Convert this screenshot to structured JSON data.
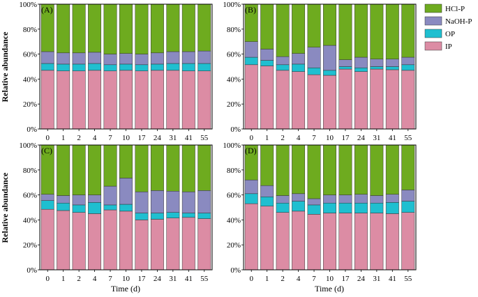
{
  "figure": {
    "ylabel": "Relative abundance",
    "xlabel": "Time (d)"
  },
  "colors": {
    "HCl-P": "#6eab1f",
    "NaOH-P": "#8a8ac0",
    "OP": "#1fbfd0",
    "IP": "#dc8ca4"
  },
  "legend": {
    "items": [
      {
        "name": "HCl-P",
        "color": "#6eab1f"
      },
      {
        "name": "NaOH-P",
        "color": "#8a8ac0"
      },
      {
        "name": "OP",
        "color": "#1fbfd0"
      },
      {
        "name": "IP",
        "color": "#dc8ca4"
      }
    ]
  },
  "chart_data": [
    {
      "type": "bar",
      "stacked": true,
      "panel_label": "(A)",
      "categories": [
        "0",
        "1",
        "2",
        "4",
        "7",
        "10",
        "17",
        "24",
        "31",
        "41",
        "55"
      ],
      "ytick_labels": [
        "0%",
        "20%",
        "40%",
        "60%",
        "80%",
        "100%"
      ],
      "ylim": [
        0,
        100
      ],
      "series": [
        {
          "name": "IP",
          "values": [
            47,
            46.5,
            46.5,
            47,
            46.5,
            47,
            46.5,
            47,
            47,
            46.5,
            46.5
          ]
        },
        {
          "name": "OP",
          "values": [
            5.5,
            5.5,
            5.5,
            5.5,
            5,
            5,
            5,
            5,
            5.5,
            6,
            6
          ]
        },
        {
          "name": "NaOH-P",
          "values": [
            9.5,
            9,
            9,
            9,
            8.5,
            8.5,
            8.5,
            9,
            9.5,
            9.5,
            10
          ]
        },
        {
          "name": "HCl-P",
          "values": [
            38,
            39,
            39,
            38.5,
            40,
            39.5,
            40,
            39,
            38,
            38,
            37.5
          ]
        }
      ]
    },
    {
      "type": "bar",
      "stacked": true,
      "panel_label": "(B)",
      "categories": [
        "0",
        "1",
        "2",
        "4",
        "7",
        "10",
        "17",
        "24",
        "31",
        "41",
        "55"
      ],
      "ytick_labels": [
        "0%",
        "20%",
        "40%",
        "60%",
        "80%",
        "100%"
      ],
      "ylim": [
        0,
        100
      ],
      "series": [
        {
          "name": "IP",
          "values": [
            51.5,
            50.5,
            47,
            46,
            43.5,
            43,
            48,
            46,
            48,
            47.5,
            47
          ]
        },
        {
          "name": "OP",
          "values": [
            6,
            4.5,
            4.5,
            6,
            5.5,
            4,
            2,
            3,
            2,
            2.5,
            4.5
          ]
        },
        {
          "name": "NaOH-P",
          "values": [
            12.5,
            9,
            6.5,
            8.5,
            16.5,
            20,
            5.5,
            8.5,
            6,
            6,
            6
          ]
        },
        {
          "name": "HCl-P",
          "values": [
            30,
            36,
            42,
            39.5,
            34.5,
            33,
            44.5,
            42.5,
            44,
            44,
            42.5
          ]
        }
      ]
    },
    {
      "type": "bar",
      "stacked": true,
      "panel_label": "(C)",
      "categories": [
        "0",
        "1",
        "2",
        "4",
        "7",
        "10",
        "17",
        "24",
        "31",
        "41",
        "55"
      ],
      "ytick_labels": [
        "0%",
        "20%",
        "40%",
        "60%",
        "80%",
        "100%"
      ],
      "ylim": [
        0,
        100
      ],
      "series": [
        {
          "name": "IP",
          "values": [
            48.5,
            47.5,
            46,
            45,
            48,
            47,
            40,
            40.5,
            41.5,
            42,
            41
          ]
        },
        {
          "name": "OP",
          "values": [
            7,
            6,
            6,
            9,
            4,
            5.5,
            5.5,
            5,
            4.5,
            3.5,
            4.5
          ]
        },
        {
          "name": "NaOH-P",
          "values": [
            5,
            6,
            8,
            6,
            15,
            21,
            17,
            18,
            17,
            17,
            18
          ]
        },
        {
          "name": "HCl-P",
          "values": [
            39.5,
            40.5,
            40,
            40,
            33,
            26.5,
            37.5,
            36.5,
            37,
            37.5,
            36.5
          ]
        }
      ]
    },
    {
      "type": "bar",
      "stacked": true,
      "panel_label": "(D)",
      "categories": [
        "0",
        "1",
        "2",
        "4",
        "7",
        "10",
        "17",
        "24",
        "31",
        "41",
        "55"
      ],
      "ytick_labels": [
        "0%",
        "20%",
        "40%",
        "60%",
        "80%",
        "100%"
      ],
      "ylim": [
        0,
        100
      ],
      "series": [
        {
          "name": "IP",
          "values": [
            53,
            51,
            46,
            47,
            44.5,
            45.5,
            45.5,
            45.5,
            45.5,
            45,
            46
          ]
        },
        {
          "name": "OP",
          "values": [
            8,
            7.5,
            7.5,
            8,
            7.5,
            8,
            8,
            8,
            8,
            9,
            9
          ]
        },
        {
          "name": "NaOH-P",
          "values": [
            11,
            9,
            6,
            6,
            5,
            6.5,
            6.5,
            7,
            6,
            6.5,
            9
          ]
        },
        {
          "name": "HCl-P",
          "values": [
            28,
            32.5,
            40.5,
            39,
            43,
            40,
            40,
            39.5,
            40.5,
            39.5,
            36
          ]
        }
      ]
    }
  ]
}
